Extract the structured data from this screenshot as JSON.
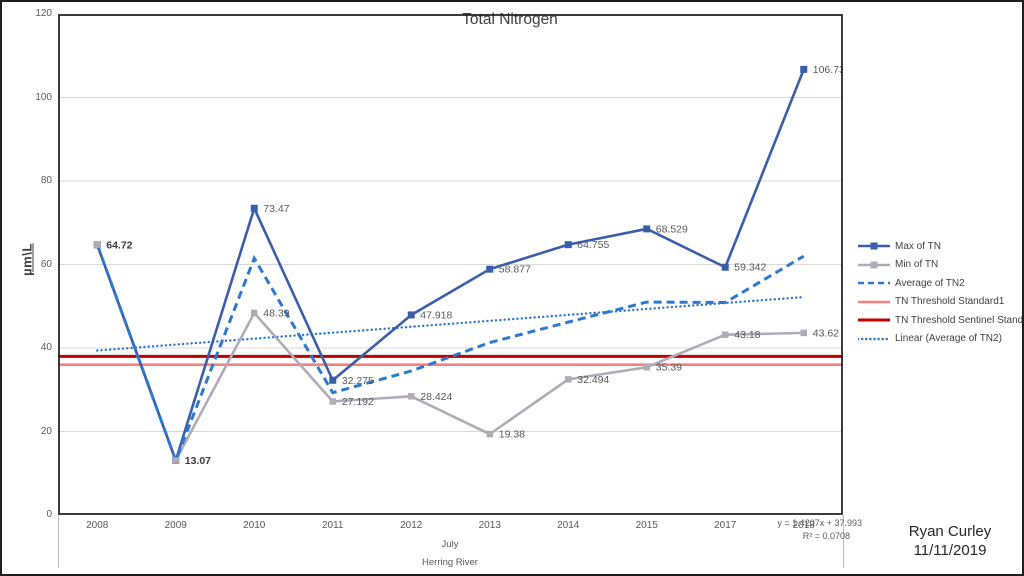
{
  "slide": {
    "author": "Ryan Curley",
    "date": "11/11/2019"
  },
  "chart_data": {
    "type": "line",
    "title": "Total Nitrogen",
    "ylabel": "µm\\L",
    "xlabel_lines": [
      "July",
      "Herring River"
    ],
    "categories": [
      "2008",
      "2009",
      "2010",
      "2011",
      "2012",
      "2013",
      "2014",
      "2015",
      "2017",
      "2018"
    ],
    "ylim": [
      0,
      120
    ],
    "yticks": [
      0,
      20,
      40,
      60,
      80,
      100,
      120
    ],
    "grid": true,
    "legend_position": "right",
    "series": [
      {
        "name": "Max of TN",
        "color": "#3a5ea9",
        "style": "solid",
        "marker": "square",
        "values": [
          64.72,
          13.07,
          73.47,
          32.275,
          47.918,
          58.877,
          64.755,
          68.529,
          59.342,
          106.736883
        ],
        "labels": [
          "64.72",
          "13.07",
          "73.47",
          "32.275",
          "47.918",
          "58.877",
          "64.755",
          "68.529",
          "59.342",
          "106.736883"
        ],
        "label_bold": [
          true,
          true,
          false,
          false,
          false,
          false,
          false,
          false,
          false,
          false
        ]
      },
      {
        "name": "Min of TN",
        "color": "#b1abb7",
        "style": "solid",
        "marker": "square",
        "values": [
          64.72,
          13.07,
          48.39,
          27.192,
          28.424,
          19.38,
          32.494,
          35.39,
          43.18,
          43.62
        ],
        "labels": [
          "",
          "",
          "48.39",
          "27.192",
          "28.424",
          "19.38",
          "32.494",
          "35.39",
          "43.18",
          "43.62"
        ],
        "label_bold": [
          false,
          false,
          false,
          false,
          false,
          false,
          false,
          false,
          false,
          false
        ]
      },
      {
        "name": "Average of TN2",
        "color": "#2e78d2",
        "style": "dashed",
        "marker": "none",
        "values": [
          64.72,
          13.07,
          61.5,
          29.3,
          34.5,
          41.3,
          46.2,
          51.0,
          50.9,
          62.0
        ],
        "labels": [
          "",
          "",
          "",
          "",
          "",
          "",
          "",
          "",
          "",
          ""
        ],
        "label_bold": [
          false,
          false,
          false,
          false,
          false,
          false,
          false,
          false,
          false,
          false
        ]
      }
    ],
    "thresholds": [
      {
        "name": "TN Threshold Standard1",
        "color": "#f88080",
        "value": 36
      },
      {
        "name": "TN Threshold Sentinel Standard",
        "color": "#be0000",
        "value": 38
      }
    ],
    "trendline": {
      "name": "Linear (Average of TN2)",
      "color": "#2e78d2",
      "style": "dotted",
      "start": 39.4,
      "end": 52.2,
      "equation": "y = 1.4207x + 37.993",
      "r2": "R² = 0.0708"
    },
    "legend": [
      {
        "label": "Max of TN",
        "color": "#3a5ea9",
        "swatch": "solid-marker"
      },
      {
        "label": "Min of TN",
        "color": "#b1abb7",
        "swatch": "solid-marker"
      },
      {
        "label": "Average of TN2",
        "color": "#2e78d2",
        "swatch": "dashed"
      },
      {
        "label": "TN Threshold Standard1",
        "color": "#f88080",
        "swatch": "solid-thin"
      },
      {
        "label": "TN Threshold Sentinel Standard",
        "color": "#be0000",
        "swatch": "solid-thick"
      },
      {
        "label": "Linear (Average of TN2)",
        "color": "#2e78d2",
        "swatch": "dotted"
      }
    ]
  }
}
